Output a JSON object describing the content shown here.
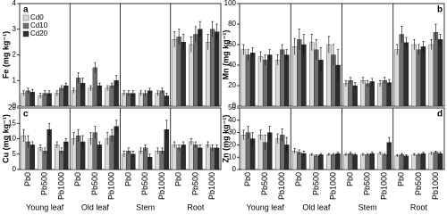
{
  "chart_data": [
    {
      "type": "bar",
      "panel": "a",
      "ylabel": "Fe (mg kg⁻¹)",
      "ylim": [
        0,
        4
      ],
      "yticks": [
        0,
        1,
        2,
        3,
        4
      ],
      "series": [
        {
          "name": "Cd0",
          "color": "#d9d9d9",
          "values": [
            0.5,
            0.4,
            0.5,
            0.6,
            0.7,
            0.7,
            0.5,
            0.5,
            0.5,
            2.6,
            2.4,
            2.5
          ],
          "errors": [
            0.1,
            0.1,
            0.1,
            0.1,
            0.1,
            0.1,
            0.1,
            0.1,
            0.1,
            0.3,
            0.3,
            0.3
          ]
        },
        {
          "name": "Cd10",
          "color": "#6e6e6e",
          "values": [
            0.6,
            0.5,
            0.7,
            1.1,
            1.5,
            0.8,
            0.5,
            0.5,
            0.6,
            2.7,
            2.8,
            3.0
          ],
          "errors": [
            0.1,
            0.1,
            0.1,
            0.2,
            0.2,
            0.1,
            0.1,
            0.1,
            0.1,
            0.3,
            0.3,
            0.3
          ]
        },
        {
          "name": "Cd20",
          "color": "#2e2e2e",
          "values": [
            0.55,
            0.5,
            0.8,
            0.9,
            0.8,
            1.0,
            0.5,
            0.6,
            0.4,
            2.5,
            3.0,
            2.9
          ],
          "errors": [
            0.1,
            0.1,
            0.1,
            0.2,
            0.1,
            0.2,
            0.1,
            0.1,
            0.1,
            0.3,
            0.3,
            0.3
          ]
        }
      ]
    },
    {
      "type": "bar",
      "panel": "b",
      "ylabel": "Mn (mg kg⁻¹)",
      "ylim": [
        0,
        100
      ],
      "yticks": [
        0,
        20,
        40,
        60,
        80,
        100
      ],
      "series": [
        {
          "color": "#d9d9d9",
          "values": [
            55,
            48,
            45,
            58,
            62,
            60,
            22,
            25,
            22,
            55,
            60,
            60
          ],
          "errors": [
            5,
            5,
            5,
            8,
            8,
            8,
            3,
            3,
            3,
            5,
            5,
            5
          ]
        },
        {
          "color": "#6e6e6e",
          "values": [
            50,
            45,
            55,
            65,
            55,
            50,
            25,
            22,
            25,
            70,
            55,
            72
          ],
          "errors": [
            5,
            5,
            5,
            10,
            10,
            10,
            3,
            3,
            3,
            8,
            5,
            8
          ]
        },
        {
          "color": "#2e2e2e",
          "values": [
            52,
            50,
            50,
            60,
            45,
            40,
            20,
            24,
            23,
            62,
            58,
            65
          ],
          "errors": [
            5,
            5,
            5,
            10,
            12,
            15,
            3,
            3,
            3,
            5,
            5,
            5
          ]
        }
      ]
    },
    {
      "type": "bar",
      "panel": "c",
      "ylabel": "Cu (mg kg⁻¹)",
      "ylim": [
        0,
        20
      ],
      "yticks": [
        0,
        5,
        10,
        15,
        20
      ],
      "groups": [
        "Young leaf",
        "Old leaf",
        "Stem",
        "Root"
      ],
      "categories": [
        "Pb0",
        "Pb500",
        "Pb1000",
        "Pb0",
        "Pb500",
        "Pb1000",
        "Pb0",
        "Pb500",
        "Pb1000",
        "Pb0",
        "Pb500",
        "Pb1000"
      ],
      "series": [
        {
          "color": "#d9d9d9",
          "values": [
            11,
            7,
            8,
            10,
            10,
            10,
            5,
            6,
            6,
            8,
            9,
            8
          ],
          "errors": [
            2,
            1,
            1,
            2,
            2,
            2,
            1,
            1,
            1,
            1,
            1,
            1
          ]
        },
        {
          "color": "#6e6e6e",
          "values": [
            9,
            6,
            6,
            11,
            12,
            11,
            6,
            7,
            6,
            7,
            8,
            7
          ],
          "errors": [
            2,
            1,
            1,
            2,
            2,
            2,
            1,
            1,
            1,
            1,
            1,
            1
          ]
        },
        {
          "color": "#2e2e2e",
          "values": [
            8,
            13,
            9,
            9,
            8,
            14,
            5,
            4,
            13,
            8,
            7,
            7
          ],
          "errors": [
            1,
            2,
            1,
            2,
            1,
            2,
            1,
            1,
            3,
            1,
            1,
            1
          ]
        }
      ]
    },
    {
      "type": "bar",
      "panel": "d",
      "ylabel": "Zn (mg kg⁻¹)",
      "ylim": [
        0,
        50
      ],
      "yticks": [
        0,
        10,
        20,
        30,
        40,
        50
      ],
      "groups": [
        "Young leaf",
        "Old leaf",
        "Stem",
        "Root"
      ],
      "categories": [
        "Pb0",
        "Pb500",
        "Pb1000",
        "Pb0",
        "Pb500",
        "Pb1000",
        "Pb0",
        "Pb500",
        "Pb1000",
        "Pb0",
        "Pb500",
        "Pb1000"
      ],
      "series": [
        {
          "color": "#d9d9d9",
          "values": [
            28,
            28,
            25,
            15,
            12,
            12,
            12,
            12,
            13,
            11,
            12,
            13
          ],
          "errors": [
            4,
            4,
            4,
            2,
            1,
            1,
            1,
            1,
            1,
            1,
            1,
            1
          ]
        },
        {
          "color": "#6e6e6e",
          "values": [
            30,
            22,
            28,
            14,
            11,
            12,
            13,
            12,
            12,
            12,
            12,
            14
          ],
          "errors": [
            5,
            6,
            5,
            2,
            1,
            1,
            1,
            1,
            1,
            1,
            1,
            1
          ]
        },
        {
          "color": "#2e2e2e",
          "values": [
            25,
            30,
            20,
            13,
            12,
            13,
            12,
            13,
            22,
            11,
            13,
            13
          ],
          "errors": [
            5,
            5,
            6,
            2,
            1,
            1,
            1,
            1,
            4,
            1,
            1,
            1
          ]
        }
      ]
    }
  ]
}
